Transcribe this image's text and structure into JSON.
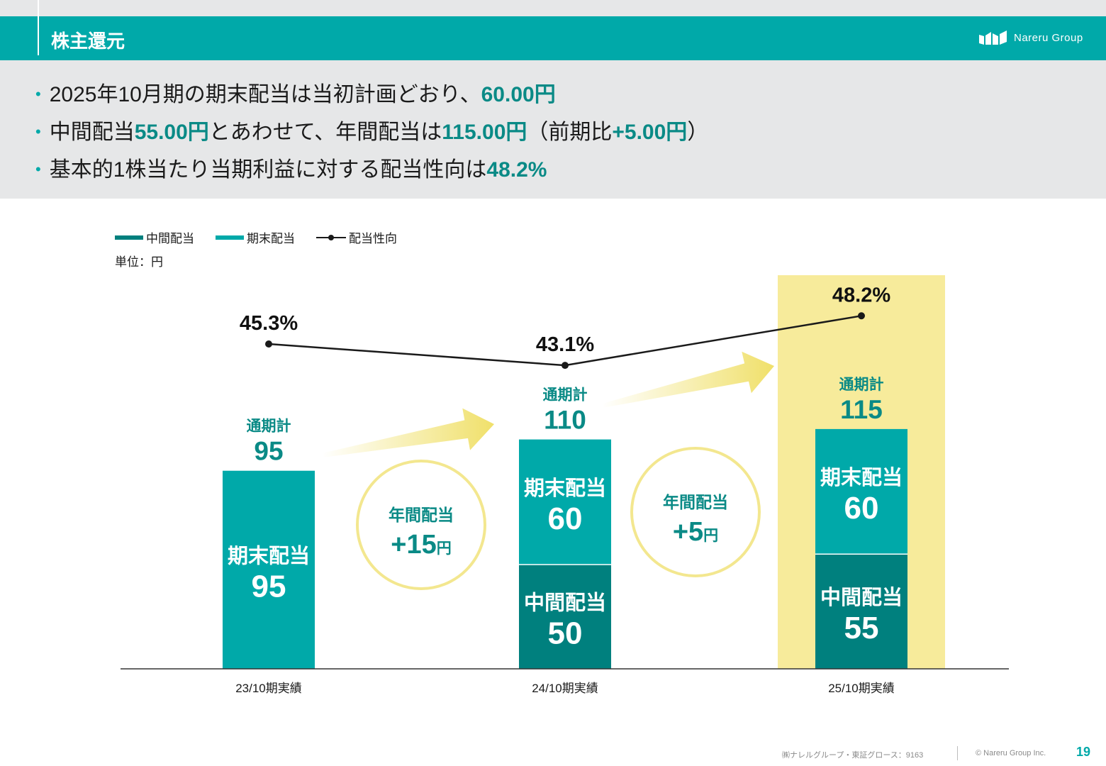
{
  "header": {
    "title": "株主還元",
    "brand": "Nareru Group"
  },
  "bullets": [
    {
      "parts": [
        {
          "t": "2025年10月期の期末配当は当初計画どおり、"
        },
        {
          "t": "60.00円",
          "hl": true
        }
      ]
    },
    {
      "parts": [
        {
          "t": "中間配当"
        },
        {
          "t": "55.00円",
          "hl": true
        },
        {
          "t": "とあわせて、年間配当は"
        },
        {
          "t": "115.00円",
          "hl": true
        },
        {
          "t": "（前期比"
        },
        {
          "t": "+5.00円",
          "hl": true
        },
        {
          "t": "）"
        }
      ]
    },
    {
      "parts": [
        {
          "t": "基本的1株当たり当期利益に対する配当性向は"
        },
        {
          "t": "48.2%",
          "hl": true
        }
      ]
    }
  ],
  "legend": {
    "interim": "中間配当",
    "year_end": "期末配当",
    "payout": "配当性向"
  },
  "unit_label": "単位：円",
  "colors": {
    "interim": "#00807e",
    "year_end": "#00a9a9",
    "accent": "#0a8a86",
    "highlight": "#f7eb9b",
    "arrow": "#f0e06a",
    "circle": "#f3e78f",
    "line": "#1a1a1a"
  },
  "chart_data": {
    "type": "bar",
    "categories": [
      "23/10期実績",
      "24/10期実績",
      "25/10期実績"
    ],
    "series": [
      {
        "name": "中間配当",
        "values": [
          0,
          50,
          55
        ]
      },
      {
        "name": "期末配当",
        "values": [
          95,
          60,
          60
        ]
      }
    ],
    "totals": [
      95,
      110,
      115
    ],
    "total_label": "通期計",
    "payout_ratio": {
      "name": "配当性向",
      "values": [
        45.3,
        43.1,
        48.2
      ],
      "labels": [
        "45.3%",
        "43.1%",
        "48.2%"
      ]
    },
    "segment_labels": {
      "interim": "中間配当",
      "year_end": "期末配当"
    },
    "increases": [
      {
        "label": "年間配当",
        "value": "+15",
        "unit": "円"
      },
      {
        "label": "年間配当",
        "value": "+5",
        "unit": "円"
      }
    ],
    "highlighted_category": "25/10期実績",
    "ylim": [
      0,
      115
    ],
    "legend_position": "top-left"
  },
  "footer": {
    "company": "㈱ナレルグループ・東証グロース：9163",
    "copyright": "© Nareru Group Inc.",
    "page": "19"
  }
}
